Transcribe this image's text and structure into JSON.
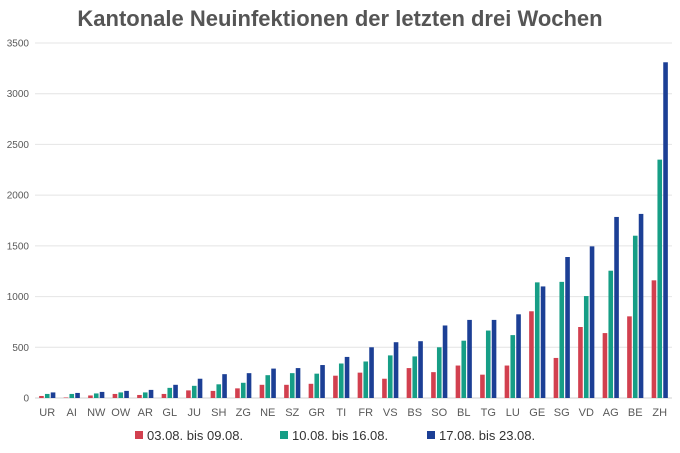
{
  "chart_data": {
    "type": "bar",
    "title": "Kantonale Neuinfektionen der letzten drei Wochen",
    "xlabel": "",
    "ylabel": "",
    "ylim": [
      0,
      3500
    ],
    "yticks": [
      0,
      500,
      1000,
      1500,
      2000,
      2500,
      3000,
      3500
    ],
    "grid": true,
    "legend_position": "bottom",
    "categories": [
      "UR",
      "AI",
      "NW",
      "OW",
      "AR",
      "GL",
      "JU",
      "SH",
      "ZG",
      "NE",
      "SZ",
      "GR",
      "TI",
      "FR",
      "VS",
      "BS",
      "SO",
      "BL",
      "TG",
      "LU",
      "GE",
      "SG",
      "VD",
      "AG",
      "BE",
      "ZH"
    ],
    "series": [
      {
        "name": "03.08. bis 09.08.",
        "color": "#d2404f",
        "values": [
          20,
          5,
          25,
          40,
          30,
          40,
          75,
          70,
          95,
          130,
          130,
          140,
          220,
          250,
          190,
          295,
          255,
          320,
          230,
          320,
          855,
          395,
          700,
          640,
          805,
          1160
        ]
      },
      {
        "name": "10.08. bis 16.08.",
        "color": "#169e86",
        "values": [
          40,
          40,
          45,
          55,
          55,
          100,
          120,
          135,
          150,
          225,
          245,
          240,
          340,
          360,
          420,
          410,
          500,
          565,
          665,
          620,
          1140,
          1145,
          1005,
          1255,
          1600,
          2350
        ]
      },
      {
        "name": "17.08. bis 23.08.",
        "color": "#1c3f95",
        "values": [
          55,
          50,
          60,
          70,
          80,
          130,
          190,
          235,
          245,
          290,
          295,
          325,
          405,
          500,
          550,
          560,
          715,
          770,
          770,
          825,
          1100,
          1390,
          1495,
          1785,
          1815,
          3310
        ]
      }
    ]
  }
}
